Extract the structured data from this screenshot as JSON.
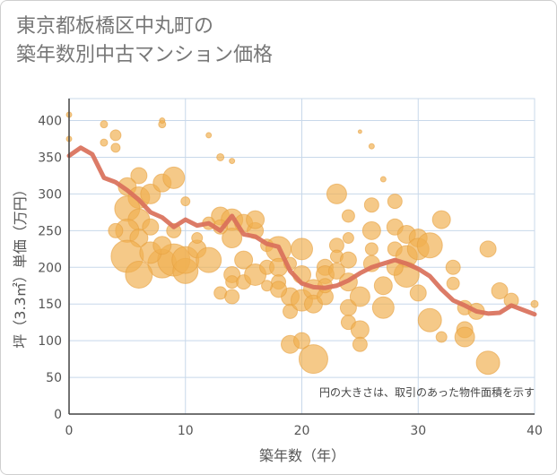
{
  "title": {
    "line1": "東京都板橋区中丸町の",
    "line2": "築年数別中古マンション価格"
  },
  "chart_data": {
    "type": "scatter",
    "title": "東京都板橋区中丸町の築年数別中古マンション価格",
    "xlabel": "築年数（年）",
    "ylabel": "坪（3.3㎡）単価（万円）",
    "xlim": [
      0,
      40
    ],
    "ylim": [
      0,
      430
    ],
    "xticks": [
      0,
      10,
      20,
      30,
      40
    ],
    "yticks": [
      0,
      50,
      100,
      150,
      200,
      250,
      300,
      350,
      400
    ],
    "grid": true,
    "annotation": "円の大きさは、取引のあった物件面積を示す",
    "colors": {
      "bubble": "#f0b050",
      "line": "#d9705a",
      "grid": "#c8d8ea"
    },
    "series": [
      {
        "type": "bubble",
        "points": [
          [
            0,
            408,
            3
          ],
          [
            0,
            375,
            3
          ],
          [
            3,
            395,
            4
          ],
          [
            3,
            370,
            4
          ],
          [
            4,
            380,
            6
          ],
          [
            4,
            363,
            5
          ],
          [
            6,
            325,
            9
          ],
          [
            5,
            310,
            10
          ],
          [
            6,
            295,
            12
          ],
          [
            7,
            300,
            11
          ],
          [
            5,
            280,
            14
          ],
          [
            6,
            265,
            12
          ],
          [
            7,
            255,
            9
          ],
          [
            5,
            250,
            13
          ],
          [
            4,
            250,
            8
          ],
          [
            6,
            240,
            10
          ],
          [
            8,
            315,
            10
          ],
          [
            8,
            395,
            4
          ],
          [
            8,
            400,
            3
          ],
          [
            9,
            322,
            12
          ],
          [
            5,
            215,
            18
          ],
          [
            8,
            205,
            16
          ],
          [
            9,
            210,
            18
          ],
          [
            10,
            195,
            14
          ],
          [
            10,
            210,
            15
          ],
          [
            11,
            225,
            10
          ],
          [
            7,
            220,
            12
          ],
          [
            6,
            190,
            15
          ],
          [
            8,
            230,
            10
          ],
          [
            9,
            250,
            8
          ],
          [
            12,
            210,
            14
          ],
          [
            12,
            380,
            3
          ],
          [
            13,
            350,
            4
          ],
          [
            13,
            270,
            10
          ],
          [
            14,
            265,
            12
          ],
          [
            14,
            345,
            3
          ],
          [
            15,
            260,
            10
          ],
          [
            14,
            240,
            11
          ],
          [
            13,
            255,
            8
          ],
          [
            15,
            210,
            10
          ],
          [
            16,
            250,
            9
          ],
          [
            16,
            265,
            10
          ],
          [
            14,
            190,
            9
          ],
          [
            14,
            180,
            7
          ],
          [
            15,
            180,
            8
          ],
          [
            13,
            165,
            7
          ],
          [
            14,
            160,
            8
          ],
          [
            16,
            190,
            12
          ],
          [
            17,
            230,
            7
          ],
          [
            17,
            200,
            8
          ],
          [
            18,
            225,
            14
          ],
          [
            18,
            200,
            10
          ],
          [
            18,
            180,
            8
          ],
          [
            19,
            160,
            10
          ],
          [
            18,
            170,
            9
          ],
          [
            19,
            140,
            8
          ],
          [
            20,
            225,
            12
          ],
          [
            20,
            190,
            10
          ],
          [
            20,
            155,
            12
          ],
          [
            21,
            170,
            11
          ],
          [
            21,
            150,
            10
          ],
          [
            19,
            95,
            10
          ],
          [
            20,
            100,
            9
          ],
          [
            21,
            75,
            16
          ],
          [
            22,
            200,
            9
          ],
          [
            22,
            190,
            10
          ],
          [
            22,
            160,
            9
          ],
          [
            23,
            300,
            11
          ],
          [
            23,
            230,
            8
          ],
          [
            23,
            215,
            7
          ],
          [
            23,
            195,
            9
          ],
          [
            24,
            270,
            7
          ],
          [
            24,
            240,
            6
          ],
          [
            24,
            210,
            9
          ],
          [
            24,
            180,
            10
          ],
          [
            24,
            145,
            9
          ],
          [
            24,
            125,
            8
          ],
          [
            25,
            160,
            11
          ],
          [
            25,
            115,
            10
          ],
          [
            25,
            95,
            8
          ],
          [
            26,
            365,
            3
          ],
          [
            26,
            285,
            8
          ],
          [
            26,
            250,
            10
          ],
          [
            26,
            225,
            7
          ],
          [
            26,
            205,
            9
          ],
          [
            27,
            175,
            10
          ],
          [
            27,
            145,
            12
          ],
          [
            28,
            290,
            8
          ],
          [
            28,
            255,
            9
          ],
          [
            28,
            225,
            8
          ],
          [
            29,
            215,
            12
          ],
          [
            29,
            245,
            10
          ],
          [
            29,
            190,
            14
          ],
          [
            30,
            240,
            10
          ],
          [
            30,
            225,
            12
          ],
          [
            31,
            230,
            14
          ],
          [
            30,
            165,
            9
          ],
          [
            31,
            128,
            13
          ],
          [
            32,
            265,
            10
          ],
          [
            32,
            105,
            6
          ],
          [
            33,
            200,
            8
          ],
          [
            34,
            145,
            8
          ],
          [
            34,
            115,
            9
          ],
          [
            34,
            105,
            11
          ],
          [
            35,
            140,
            9
          ],
          [
            36,
            225,
            9
          ],
          [
            36,
            70,
            13
          ],
          [
            37,
            168,
            9
          ],
          [
            38,
            155,
            8
          ],
          [
            40,
            150,
            4
          ],
          [
            10,
            290,
            5
          ],
          [
            11,
            240,
            6
          ],
          [
            12,
            260,
            7
          ],
          [
            17,
            175,
            6
          ],
          [
            19,
            205,
            7
          ],
          [
            22,
            175,
            8
          ],
          [
            28,
            200,
            9
          ],
          [
            33,
            178,
            7
          ],
          [
            27,
            320,
            3
          ],
          [
            25,
            385,
            2
          ]
        ]
      },
      {
        "type": "line",
        "points": [
          [
            0,
            352
          ],
          [
            1,
            363
          ],
          [
            2,
            354
          ],
          [
            3,
            322
          ],
          [
            4,
            316
          ],
          [
            5,
            305
          ],
          [
            6,
            292
          ],
          [
            7,
            275
          ],
          [
            8,
            268
          ],
          [
            9,
            255
          ],
          [
            10,
            265
          ],
          [
            11,
            257
          ],
          [
            12,
            260
          ],
          [
            13,
            250
          ],
          [
            14,
            270
          ],
          [
            15,
            245
          ],
          [
            16,
            242
          ],
          [
            17,
            232
          ],
          [
            18,
            228
          ],
          [
            19,
            195
          ],
          [
            20,
            178
          ],
          [
            21,
            173
          ],
          [
            22,
            172
          ],
          [
            23,
            175
          ],
          [
            24,
            182
          ],
          [
            25,
            192
          ],
          [
            26,
            200
          ],
          [
            27,
            205
          ],
          [
            28,
            210
          ],
          [
            29,
            205
          ],
          [
            30,
            198
          ],
          [
            31,
            188
          ],
          [
            32,
            170
          ],
          [
            33,
            155
          ],
          [
            34,
            148
          ],
          [
            35,
            140
          ],
          [
            36,
            137
          ],
          [
            37,
            138
          ],
          [
            38,
            148
          ],
          [
            39,
            142
          ],
          [
            40,
            136
          ]
        ]
      }
    ]
  }
}
